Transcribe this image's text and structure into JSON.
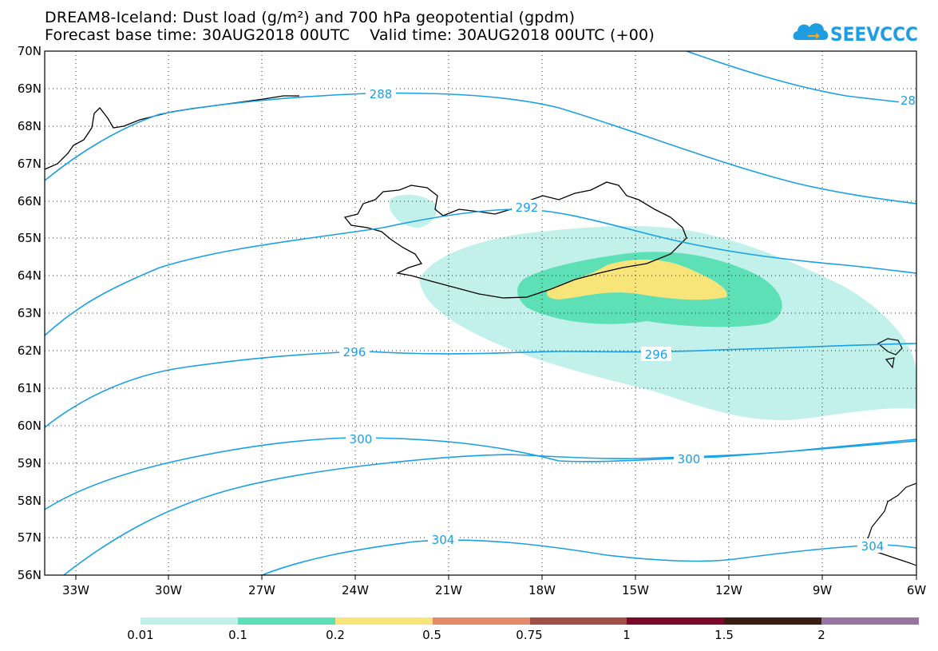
{
  "header": {
    "title_line1": "DREAM8-Iceland: Dust load (g/m²) and 700 hPa geopotential (gpdm)",
    "title_line2": "Forecast base time: 30AUG2018 00UTC    Valid time: 30AUG2018 00UTC (+00)"
  },
  "logo": {
    "text": "SEEVCCC",
    "color": "#1e9ee0"
  },
  "map": {
    "lat_labels": [
      "70N",
      "69N",
      "68N",
      "67N",
      "66N",
      "65N",
      "64N",
      "63N",
      "62N",
      "61N",
      "60N",
      "59N",
      "58N",
      "57N",
      "56N"
    ],
    "lon_labels": [
      "33W",
      "30W",
      "27W",
      "24W",
      "21W",
      "18W",
      "15W",
      "12W",
      "9W",
      "6W"
    ],
    "contour_labels": [
      "288",
      "28",
      "292",
      "296",
      "296",
      "300",
      "300",
      "304",
      "304"
    ],
    "contour_color": "#1aa0e6",
    "coast_color": "#000000"
  },
  "legend": {
    "colors": [
      "#c2f1eb",
      "#5ee0b7",
      "#f8e57a",
      "#e48c6a",
      "#a14e46",
      "#7b0b2b",
      "#3a1e12",
      "#9874a3"
    ],
    "labels": [
      "0.01",
      "0.1",
      "0.2",
      "0.5",
      "0.75",
      "1",
      "1.5",
      "2"
    ]
  }
}
